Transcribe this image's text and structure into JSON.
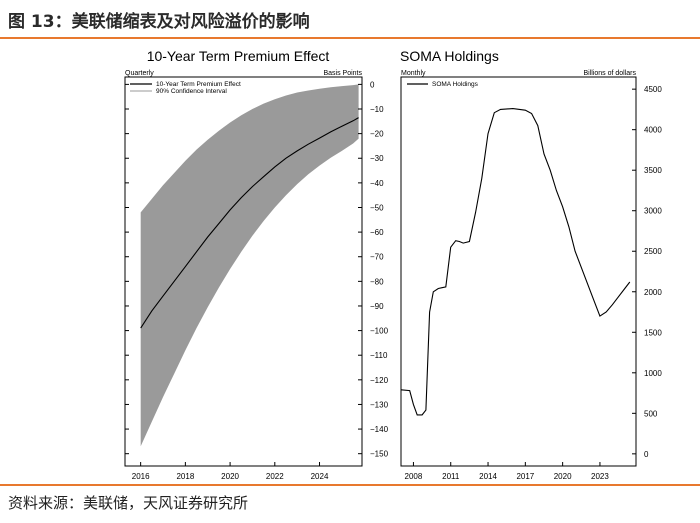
{
  "figure": {
    "title": "图 13：美联储缩表及对风险溢价的影响",
    "source": "资料来源：美联储，天风证券研究所",
    "colors": {
      "accent_rule": "#e8792e",
      "band": "#9a9a9a",
      "line": "#000000"
    }
  },
  "chart_data": [
    {
      "type": "line",
      "title": "10-Year Term Premium Effect",
      "subtitle_left": "Quarterly",
      "subtitle_right": "Basis Points",
      "legend": [
        "10-Year Term Premium Effect",
        "90% Confidence Interval"
      ],
      "x_ticks": [
        2016,
        2018,
        2020,
        2022,
        2024
      ],
      "x_tick_labels": [
        "2016",
        "2018",
        "2020",
        "2022",
        "2024"
      ],
      "y_ticks": [
        0,
        -10,
        -20,
        -30,
        -40,
        -50,
        -60,
        -70,
        -80,
        -90,
        -100,
        -110,
        -120,
        -130,
        -140,
        -150
      ],
      "y_tick_labels": [
        "0",
        "−10",
        "−20",
        "−30",
        "−40",
        "−50",
        "−60",
        "−70",
        "−80",
        "−90",
        "−100",
        "−110",
        "−120",
        "−130",
        "−140",
        "−150"
      ],
      "xlim": [
        2015.3,
        2025.9
      ],
      "ylim": [
        -155,
        3
      ],
      "series": [
        {
          "name": "10-Year Term Premium Effect",
          "x": [
            2016.0,
            2016.5,
            2017.0,
            2017.5,
            2018.0,
            2018.5,
            2019.0,
            2019.5,
            2020.0,
            2020.5,
            2021.0,
            2021.5,
            2022.0,
            2022.5,
            2023.0,
            2023.5,
            2024.0,
            2024.5,
            2025.0,
            2025.5,
            2025.75
          ],
          "y": [
            -99,
            -92,
            -86,
            -80,
            -74,
            -68,
            -62,
            -56.5,
            -51,
            -46,
            -41.5,
            -37.5,
            -33.5,
            -30,
            -27,
            -24.3,
            -21.8,
            -19.3,
            -17,
            -14.8,
            -13.5
          ]
        }
      ],
      "band": {
        "name": "90% Confidence Interval",
        "x": [
          2016.0,
          2016.5,
          2017.0,
          2017.5,
          2018.0,
          2018.5,
          2019.0,
          2019.5,
          2020.0,
          2020.5,
          2021.0,
          2021.5,
          2022.0,
          2022.5,
          2023.0,
          2023.5,
          2024.0,
          2024.5,
          2025.0,
          2025.5,
          2025.75
        ],
        "upper": [
          -52,
          -46.5,
          -41,
          -36,
          -31,
          -26.5,
          -22.5,
          -18.8,
          -15.5,
          -12.5,
          -10,
          -7.8,
          -6,
          -4.5,
          -3.3,
          -2.5,
          -1.8,
          -1.2,
          -0.7,
          -0.3,
          0
        ],
        "lower": [
          -147,
          -137,
          -127,
          -117.5,
          -108,
          -99,
          -90.5,
          -82.5,
          -75,
          -68,
          -61.5,
          -55.5,
          -50,
          -45,
          -40.5,
          -36.5,
          -33,
          -29.8,
          -27,
          -24,
          -22
        ]
      }
    },
    {
      "type": "line",
      "title": "SOMA Holdings",
      "subtitle_left": "Monthly",
      "subtitle_right": "Billions of dollars",
      "legend": [
        "SOMA Holdings"
      ],
      "x_ticks": [
        2008,
        2011,
        2014,
        2017,
        2020,
        2023
      ],
      "x_tick_labels": [
        "2008",
        "2011",
        "2014",
        "2017",
        "2020",
        "2023"
      ],
      "y_ticks": [
        0,
        500,
        1000,
        1500,
        2000,
        2500,
        3000,
        3500,
        4000,
        4500
      ],
      "y_tick_labels": [
        "0",
        "500",
        "1000",
        "1500",
        "2000",
        "2500",
        "3000",
        "3500",
        "4000",
        "4500"
      ],
      "xlim": [
        2007.0,
        2025.9
      ],
      "ylim": [
        -150,
        4650
      ],
      "series": [
        {
          "name": "SOMA Holdings",
          "x": [
            2007.0,
            2007.7,
            2008.0,
            2008.3,
            2008.7,
            2009.0,
            2009.3,
            2009.6,
            2010.0,
            2010.3,
            2010.6,
            2011.0,
            2011.4,
            2011.7,
            2012.0,
            2012.5,
            2013.0,
            2013.5,
            2014.0,
            2014.5,
            2015.0,
            2016.0,
            2017.0,
            2017.5,
            2018.0,
            2018.5,
            2019.0,
            2019.5,
            2020.0,
            2020.5,
            2021.0,
            2021.5,
            2022.0,
            2022.5,
            2023.0,
            2023.5,
            2024.0,
            2024.5,
            2025.0,
            2025.4
          ],
          "y": [
            790,
            780,
            610,
            480,
            480,
            540,
            1750,
            2000,
            2040,
            2050,
            2060,
            2550,
            2630,
            2620,
            2600,
            2620,
            2980,
            3400,
            3950,
            4210,
            4250,
            4260,
            4240,
            4200,
            4050,
            3700,
            3500,
            3250,
            3050,
            2800,
            2500,
            2300,
            2100,
            1900,
            1700,
            1750,
            1840,
            1940,
            2040,
            2120
          ]
        }
      ]
    }
  ]
}
